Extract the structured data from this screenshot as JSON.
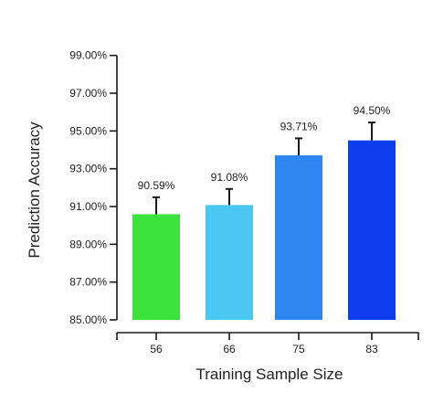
{
  "chart_data": {
    "type": "bar",
    "title": "",
    "xlabel": "Training Sample Size",
    "ylabel": "Prediction Accuracy",
    "categories": [
      "56",
      "66",
      "75",
      "83"
    ],
    "values": [
      90.59,
      91.08,
      93.71,
      94.5
    ],
    "errors": [
      0.9,
      0.85,
      0.9,
      0.95
    ],
    "value_labels": [
      "90.59%",
      "91.08%",
      "93.71%",
      "94.50%"
    ],
    "colors": [
      "#3de33d",
      "#4cc6f2",
      "#2f86f3",
      "#0c3ef0"
    ],
    "ylim": [
      85,
      100
    ],
    "yticks": [
      85,
      87,
      89,
      91,
      93,
      95,
      97,
      99
    ],
    "ytick_labels": [
      "85.00%",
      "87.00%",
      "89.00%",
      "91.00%",
      "93.00%",
      "95.00%",
      "97.00%",
      "99.00%"
    ],
    "grid": false,
    "legend": "none"
  }
}
